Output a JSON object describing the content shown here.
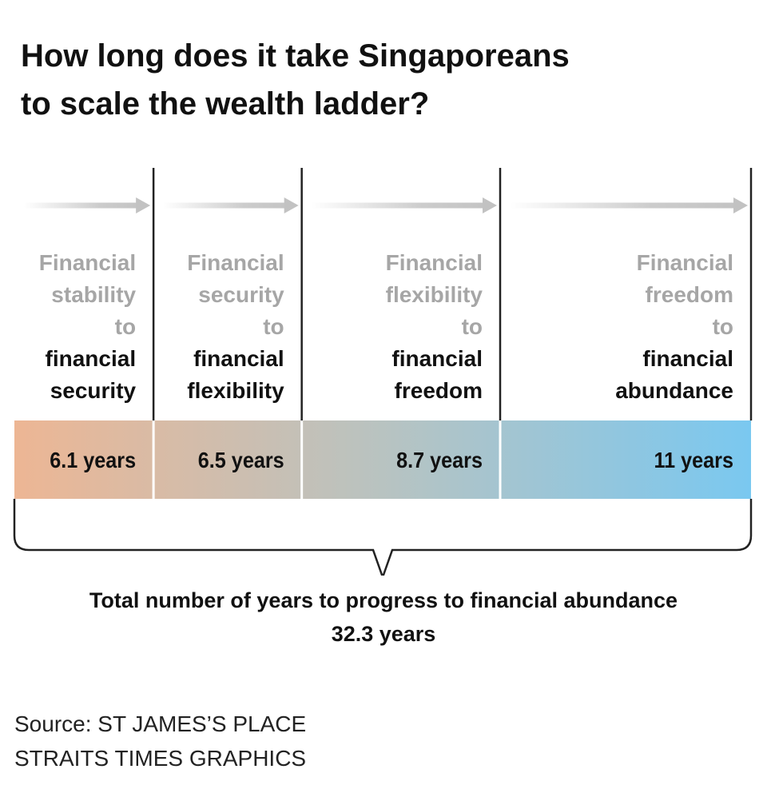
{
  "title_lines": [
    "How long does it take Singaporeans",
    "to scale the wealth ladder?"
  ],
  "chart_data": {
    "type": "bar",
    "orientation": "horizontal-stacked",
    "unit": "years",
    "categories": [
      {
        "from": [
          "Financial",
          "stability",
          "to"
        ],
        "to": [
          "financial",
          "security"
        ]
      },
      {
        "from": [
          "Financial",
          "security",
          "to"
        ],
        "to": [
          "financial",
          "flexibility"
        ]
      },
      {
        "from": [
          "Financial",
          "flexibility",
          "to"
        ],
        "to": [
          "financial",
          "freedom"
        ]
      },
      {
        "from": [
          "Financial",
          "freedom",
          "to"
        ],
        "to": [
          "financial",
          "abundance"
        ]
      }
    ],
    "values": [
      6.1,
      6.5,
      8.7,
      11
    ],
    "value_labels": [
      "6.1 years",
      "6.5 years",
      "8.7 years",
      "11 years"
    ],
    "total": 32.3,
    "total_label": "32.3 years",
    "gradient_colors": [
      "#edb694",
      "#b8c3c1",
      "#7ac8f0"
    ]
  },
  "caption": "Total number of years to progress to financial abundance",
  "source_lines": [
    "Source: ST JAMES’S PLACE",
    "STRAITS TIMES GRAPHICS"
  ],
  "colors": {
    "muted_text": "#a6a6a6",
    "dark_text": "#111111",
    "arrow": "#cccccc",
    "divider": "#222222"
  }
}
